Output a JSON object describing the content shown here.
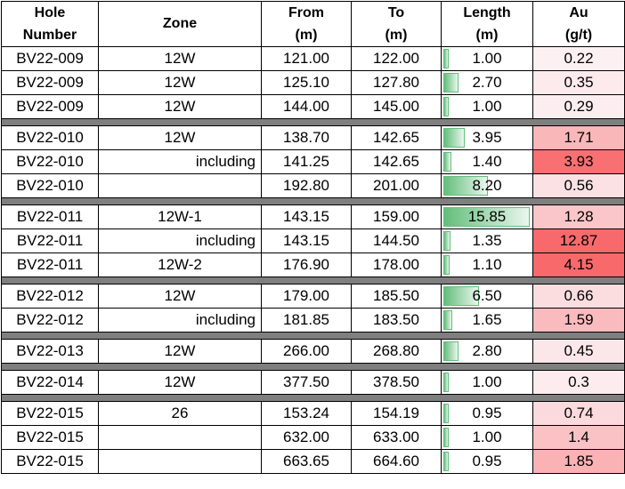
{
  "headers": {
    "hole": [
      "Hole",
      "Number"
    ],
    "zone": "Zone",
    "from": [
      "From",
      "(m)"
    ],
    "to": [
      "To",
      "(m)"
    ],
    "length": [
      "Length",
      "(m)"
    ],
    "au": [
      "Au",
      "(g/t)"
    ]
  },
  "colors": {
    "bar": "#63be7b",
    "au_high": "#f8696b",
    "au_low": "#fcfcff",
    "separator": "#7f7f7f"
  },
  "length_max": 15.85,
  "au_max": 12.87,
  "rows": [
    {
      "hole": "BV22-009",
      "zone": "12W",
      "zone_align": "center",
      "from": "121.00",
      "to": "122.00",
      "length": "1.00",
      "au": "0.22"
    },
    {
      "hole": "BV22-009",
      "zone": "12W",
      "zone_align": "center",
      "from": "125.10",
      "to": "127.80",
      "length": "2.70",
      "au": "0.35"
    },
    {
      "hole": "BV22-009",
      "zone": "12W",
      "zone_align": "center",
      "from": "144.00",
      "to": "145.00",
      "length": "1.00",
      "au": "0.29"
    },
    {
      "sep": true
    },
    {
      "hole": "BV22-010",
      "zone": "12W",
      "zone_align": "center",
      "from": "138.70",
      "to": "142.65",
      "length": "3.95",
      "au": "1.71"
    },
    {
      "hole": "BV22-010",
      "zone": "including",
      "zone_align": "right",
      "from": "141.25",
      "to": "142.65",
      "length": "1.40",
      "au": "3.93"
    },
    {
      "hole": "BV22-010",
      "zone": "",
      "zone_align": "center",
      "from": "192.80",
      "to": "201.00",
      "length": "8.20",
      "au": "0.56"
    },
    {
      "sep": true
    },
    {
      "hole": "BV22-011",
      "zone": "12W-1",
      "zone_align": "center",
      "from": "143.15",
      "to": "159.00",
      "length": "15.85",
      "au": "1.28"
    },
    {
      "hole": "BV22-011",
      "zone": "including",
      "zone_align": "right",
      "from": "143.15",
      "to": "144.50",
      "length": "1.35",
      "au": "12.87"
    },
    {
      "hole": "BV22-011",
      "zone": "12W-2",
      "zone_align": "center",
      "from": "176.90",
      "to": "178.00",
      "length": "1.10",
      "au": "4.15"
    },
    {
      "sep": true
    },
    {
      "hole": "BV22-012",
      "zone": "12W",
      "zone_align": "center",
      "from": "179.00",
      "to": "185.50",
      "length": "6.50",
      "au": "0.66"
    },
    {
      "hole": "BV22-012",
      "zone": "including",
      "zone_align": "right",
      "from": "181.85",
      "to": "183.50",
      "length": "1.65",
      "au": "1.59"
    },
    {
      "sep": true
    },
    {
      "hole": "BV22-013",
      "zone": "12W",
      "zone_align": "center",
      "from": "266.00",
      "to": "268.80",
      "length": "2.80",
      "au": "0.45"
    },
    {
      "sep": true
    },
    {
      "hole": "BV22-014",
      "zone": "12W",
      "zone_align": "center",
      "from": "377.50",
      "to": "378.50",
      "length": "1.00",
      "au": "0.3"
    },
    {
      "sep": true
    },
    {
      "hole": "BV22-015",
      "zone": "26",
      "zone_align": "center",
      "from": "153.24",
      "to": "154.19",
      "length": "0.95",
      "au": "0.74"
    },
    {
      "hole": "BV22-015",
      "zone": "",
      "zone_align": "center",
      "from": "632.00",
      "to": "633.00",
      "length": "1.00",
      "au": "1.4"
    },
    {
      "hole": "BV22-015",
      "zone": "",
      "zone_align": "center",
      "from": "663.65",
      "to": "664.60",
      "length": "0.95",
      "au": "1.85"
    }
  ]
}
